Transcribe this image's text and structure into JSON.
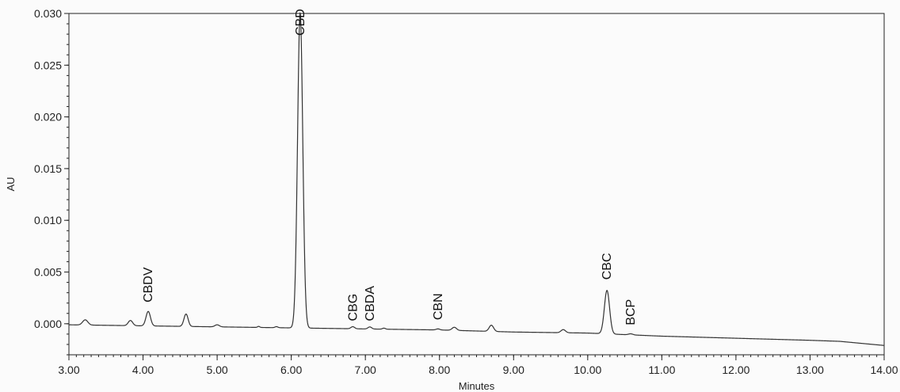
{
  "chart_data": {
    "type": "line",
    "title": "",
    "xlabel": "Minutes",
    "ylabel": "AU",
    "xlim": [
      3.0,
      14.0
    ],
    "ylim": [
      -0.003,
      0.03
    ],
    "grid": false,
    "x_ticks": [
      3.0,
      4.0,
      5.0,
      6.0,
      7.0,
      8.0,
      9.0,
      10.0,
      11.0,
      12.0,
      13.0,
      14.0
    ],
    "x_tick_labels": [
      "3.00",
      "4.00",
      "5.00",
      "6.00",
      "7.00",
      "8.00",
      "9.00",
      "10.00",
      "11.00",
      "12.00",
      "13.00",
      "14.00"
    ],
    "y_ticks": [
      0.0,
      0.005,
      0.01,
      0.015,
      0.02,
      0.025,
      0.03
    ],
    "y_tick_labels": [
      "0.000",
      "0.005",
      "0.010",
      "0.015",
      "0.020",
      "0.025",
      "0.030"
    ],
    "series": [
      {
        "color": "#333333",
        "baseline": [
          [
            3.0,
            -0.0001
          ],
          [
            4.0,
            -0.0002
          ],
          [
            5.0,
            -0.0003
          ],
          [
            6.0,
            -0.0004
          ],
          [
            7.0,
            -0.0005
          ],
          [
            8.0,
            -0.0006
          ],
          [
            9.0,
            -0.0008
          ],
          [
            10.0,
            -0.0009
          ],
          [
            11.0,
            -0.0012
          ],
          [
            12.0,
            -0.0014
          ],
          [
            13.0,
            -0.0016
          ],
          [
            13.4,
            -0.0017
          ],
          [
            14.0,
            -0.0021
          ]
        ],
        "peaks": [
          {
            "rt": 3.22,
            "height": 0.0005,
            "width": 0.035
          },
          {
            "rt": 3.83,
            "height": 0.0005,
            "width": 0.03
          },
          {
            "rt": 4.07,
            "height": 0.0014,
            "width": 0.03
          },
          {
            "rt": 4.58,
            "height": 0.0012,
            "width": 0.028
          },
          {
            "rt": 5.0,
            "height": 0.0002,
            "width": 0.03
          },
          {
            "rt": 5.56,
            "height": 0.0001,
            "width": 0.015
          },
          {
            "rt": 5.8,
            "height": 0.0001,
            "width": 0.02
          },
          {
            "rt": 6.12,
            "height": 0.0305,
            "width": 0.035
          },
          {
            "rt": 6.83,
            "height": 0.0002,
            "width": 0.025
          },
          {
            "rt": 7.06,
            "height": 0.0002,
            "width": 0.025
          },
          {
            "rt": 7.25,
            "height": 0.0001,
            "width": 0.02
          },
          {
            "rt": 7.98,
            "height": 0.0001,
            "width": 0.025
          },
          {
            "rt": 8.2,
            "height": 0.0003,
            "width": 0.03
          },
          {
            "rt": 8.7,
            "height": 0.0006,
            "width": 0.03
          },
          {
            "rt": 9.67,
            "height": 0.0003,
            "width": 0.03
          },
          {
            "rt": 10.26,
            "height": 0.0042,
            "width": 0.035
          },
          {
            "rt": 10.58,
            "height": 0.0001,
            "width": 0.03
          }
        ]
      }
    ],
    "annotations": [
      {
        "text": "CBDV",
        "x": 4.07,
        "y": 0.0016
      },
      {
        "text": "CBD",
        "x": 6.12,
        "y": 0.0274
      },
      {
        "text": "CBG",
        "x": 6.83,
        "y": -0.0002
      },
      {
        "text": "CBDA",
        "x": 7.06,
        "y": -0.0002
      },
      {
        "text": "CBN",
        "x": 7.98,
        "y": -0.0001
      },
      {
        "text": "CBC",
        "x": 10.26,
        "y": 0.0038
      },
      {
        "text": "BCP",
        "x": 10.58,
        "y": -0.0006
      }
    ]
  }
}
